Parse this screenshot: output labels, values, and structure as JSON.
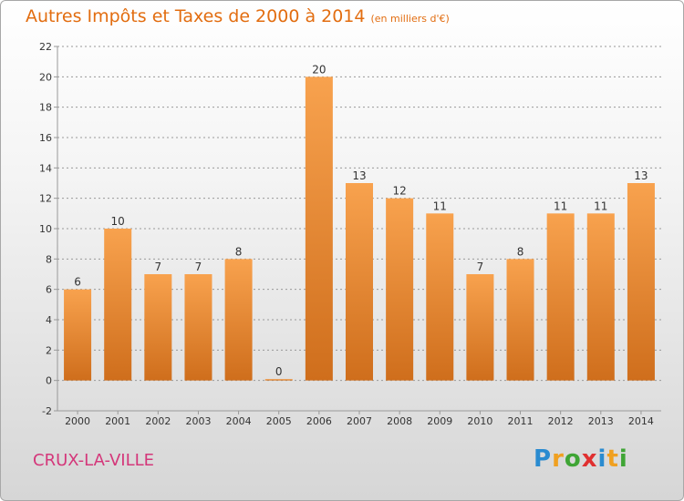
{
  "title": "Autres Impôts et Taxes de 2000 à 2014",
  "subtitle": "(en milliers d'€)",
  "commune": "CRUX-LA-VILLE",
  "brand": {
    "letters": [
      "P",
      "r",
      "o",
      "x",
      "i",
      "t",
      "i"
    ],
    "colors": [
      "#2a8bd0",
      "#f0a020",
      "#3fa535",
      "#e03030",
      "#2a8bd0",
      "#f0a020",
      "#3fa535"
    ]
  },
  "colors": {
    "bar_top": "#f8a24e",
    "bar_bottom": "#cf6e1c",
    "axis": "#999999",
    "grid": "#999999",
    "title": "#e26d10",
    "commune": "#d4377a"
  },
  "chart_data": {
    "type": "bar",
    "title": "Autres Impôts et Taxes de 2000 à 2014",
    "subtitle": "(en milliers d'€)",
    "categories": [
      "2000",
      "2001",
      "2002",
      "2003",
      "2004",
      "2005",
      "2006",
      "2007",
      "2008",
      "2009",
      "2010",
      "2011",
      "2012",
      "2013",
      "2014"
    ],
    "values": [
      6,
      10,
      7,
      7,
      8,
      0,
      20,
      13,
      12,
      11,
      7,
      8,
      11,
      11,
      13
    ],
    "ylim": [
      -2,
      22
    ],
    "yticks": [
      -2,
      0,
      2,
      4,
      6,
      8,
      10,
      12,
      14,
      16,
      18,
      20,
      22
    ],
    "grid": "horizontal dashed",
    "legend": "none"
  }
}
